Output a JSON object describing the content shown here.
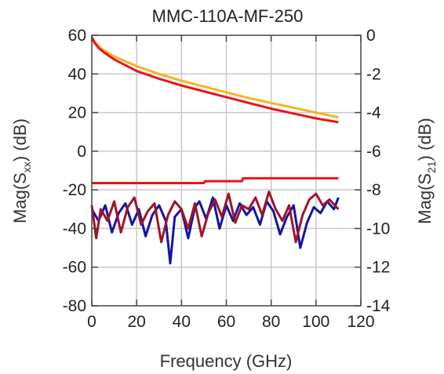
{
  "chart_data": {
    "type": "line",
    "title": "MMC-110A-MF-250",
    "xlabel": "Frequency (GHz)",
    "ylabel_left": {
      "base": "Mag(S",
      "sub": "xx",
      "tail": ") (dB)"
    },
    "ylabel_right": {
      "base": "Mag(S",
      "sub": "21",
      "tail": ") (dB)"
    },
    "xlim": [
      0,
      120
    ],
    "ylim_left": [
      -80,
      60
    ],
    "ylim_right": [
      -14,
      0
    ],
    "xticks": [
      0,
      20,
      40,
      60,
      80,
      100,
      120
    ],
    "yticks_left": [
      -80,
      -60,
      -40,
      -20,
      0,
      20,
      40,
      60
    ],
    "yticks_right": [
      -14,
      -12,
      -10,
      -8,
      -6,
      -4,
      -2,
      0
    ],
    "grid": true,
    "colors": {
      "yellow": "#f6b41e",
      "red": "#e8141c",
      "blue": "#1414a0",
      "darkred": "#a01428",
      "grid": "#c8c8c8"
    },
    "series": [
      {
        "color_key": "yellow",
        "axis": "right",
        "x": [
          0,
          1,
          3,
          5,
          10,
          20,
          30,
          40,
          50,
          60,
          70,
          80,
          90,
          100,
          110
        ],
        "y": [
          -0.1,
          -0.3,
          -0.55,
          -0.75,
          -1.1,
          -1.6,
          -2.0,
          -2.35,
          -2.65,
          -2.95,
          -3.25,
          -3.5,
          -3.75,
          -4.0,
          -4.25
        ]
      },
      {
        "color_key": "red",
        "axis": "right",
        "x": [
          0,
          1,
          3,
          5,
          10,
          20,
          30,
          40,
          50,
          60,
          70,
          80,
          90,
          100,
          110
        ],
        "y": [
          -0.1,
          -0.35,
          -0.65,
          -0.85,
          -1.25,
          -1.85,
          -2.25,
          -2.6,
          -2.9,
          -3.2,
          -3.5,
          -3.8,
          -4.05,
          -4.3,
          -4.5
        ]
      },
      {
        "color_key": "red",
        "axis": "left",
        "x": [
          0,
          50,
          50.5,
          67,
          67.5,
          110
        ],
        "y": [
          -16.5,
          -16.5,
          -15.5,
          -15.5,
          -14,
          -14
        ]
      },
      {
        "color_key": "blue",
        "axis": "left",
        "x": [
          0,
          3,
          6,
          9,
          12,
          15,
          18,
          21,
          24,
          27,
          30,
          33,
          35,
          37,
          40,
          43,
          46,
          48,
          51,
          54,
          57,
          60,
          63,
          66,
          69,
          72,
          75,
          78,
          81,
          84,
          87,
          90,
          93,
          96,
          99,
          102,
          105,
          108,
          110
        ],
        "y": [
          -30,
          -36,
          -28,
          -42,
          -32,
          -27,
          -38,
          -30,
          -44,
          -33,
          -28,
          -36,
          -58,
          -34,
          -30,
          -45,
          -29,
          -26,
          -35,
          -24,
          -40,
          -28,
          -36,
          -27,
          -33,
          -29,
          -38,
          -26,
          -31,
          -43,
          -34,
          -28,
          -50,
          -37,
          -29,
          -32,
          -26,
          -30,
          -24
        ]
      },
      {
        "color_key": "darkred",
        "axis": "left",
        "x": [
          0,
          2,
          4,
          7,
          10,
          13,
          16,
          19,
          22,
          25,
          28,
          31,
          34,
          37,
          40,
          43,
          46,
          49,
          52,
          55,
          58,
          61,
          64,
          67,
          70,
          73,
          76,
          79,
          82,
          85,
          88,
          91,
          94,
          97,
          100,
          103,
          106,
          110
        ],
        "y": [
          -28,
          -45,
          -30,
          -36,
          -26,
          -42,
          -29,
          -24,
          -38,
          -31,
          -27,
          -47,
          -33,
          -26,
          -30,
          -40,
          -27,
          -44,
          -32,
          -25,
          -34,
          -22,
          -37,
          -28,
          -30,
          -24,
          -33,
          -21,
          -30,
          -36,
          -28,
          -47,
          -33,
          -25,
          -22,
          -28,
          -25,
          -30
        ]
      }
    ]
  }
}
